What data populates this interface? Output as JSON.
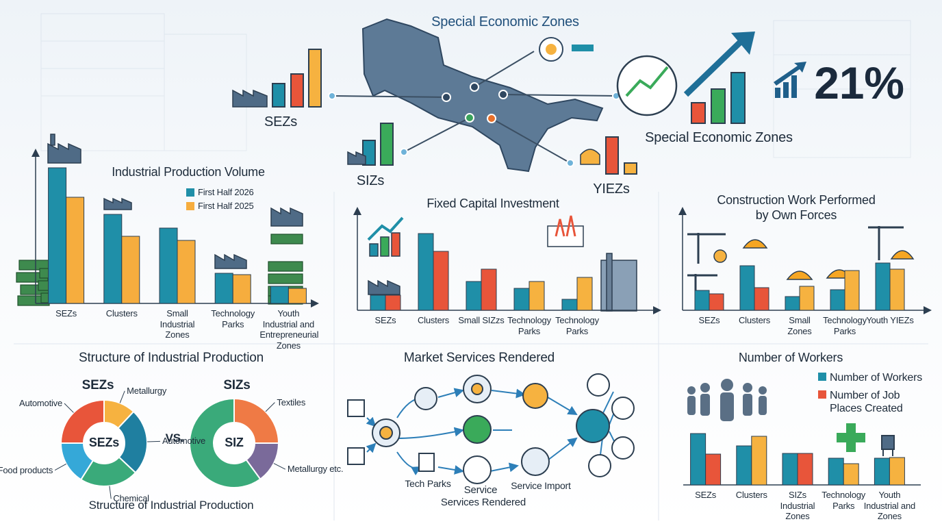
{
  "header": {
    "title": "Special Economic Zones",
    "map_labels": [
      "SEZs",
      "SIZs",
      "YIEZs"
    ],
    "highlight": "21%",
    "caption": "Special Economic Zones"
  },
  "structure": {
    "title": "Structure of Industrial Production",
    "vs": "VS.",
    "caption": "Structure of Industrial Production"
  },
  "services": {
    "title": "Market Services Rendered",
    "labels": [
      "Tech Parks",
      "Service",
      "Services Rendered",
      "Service Import"
    ]
  },
  "chart_data": [
    {
      "type": "bar",
      "title": "Industrial Production Volume",
      "categories": [
        "SEZs",
        "Clusters",
        "Small Industrial Zones",
        "Technology Parks",
        "Youth Industrial and Entrepreneurial Zones"
      ],
      "series": [
        {
          "name": "First Half 2026",
          "color": "#1f8fa8",
          "values": [
            198,
            130,
            110,
            44,
            25
          ]
        },
        {
          "name": "First Half 2025",
          "color": "#f6ad3e",
          "values": [
            155,
            98,
            92,
            42,
            22
          ]
        }
      ],
      "ylim": [
        0,
        210
      ],
      "legend": "upper right"
    },
    {
      "type": "bar",
      "title": "Fixed Capital Investment",
      "categories": [
        "SEZs",
        "Clusters",
        "Small SIZzs",
        "Technology Parks",
        "Technology Parks"
      ],
      "series": [
        {
          "color": "#1f8fa8",
          "values": [
            22,
            112,
            42,
            32,
            16
          ]
        },
        {
          "color": "#e8553a",
          "colors": [
            "#e8553a",
            "#e8553a",
            "#e8553a",
            "#f6b240",
            "#f6b240"
          ],
          "values": [
            22,
            86,
            60,
            42,
            48
          ]
        }
      ],
      "ylim": [
        0,
        135
      ]
    },
    {
      "type": "bar",
      "title": "Construction Work Performed by Own Forces",
      "categories": [
        "SEZs",
        "Clusters",
        "Small Zones",
        "Technology Parks",
        "Youth YIEZs"
      ],
      "series": [
        {
          "color": "#1f8fa8",
          "values": [
            29,
            65,
            20,
            30,
            69
          ]
        },
        {
          "color": "#e8553a",
          "colors": [
            "#e8553a",
            "#e8553a",
            "#f6b240",
            "#f6b240",
            "#f6b240"
          ],
          "values": [
            24,
            33,
            35,
            58,
            60
          ]
        }
      ],
      "ylim": [
        0,
        135
      ]
    },
    {
      "type": "bar",
      "title": "Number of Workers",
      "categories": [
        "SEZs",
        "Clusters",
        "SIZs Industrial Zones",
        "Technology Parks",
        "Youth Industrial and Zones"
      ],
      "series": [
        {
          "name": "Number of Workers",
          "color": "#1f8fa8",
          "values": [
            75,
            57,
            46,
            39,
            39
          ]
        },
        {
          "name": "Number of Job Places Created",
          "color": "#e8553a",
          "colors": [
            "#e8553a",
            "#f6b240",
            "#e8553a",
            "#f6b240",
            "#f6b240"
          ],
          "values": [
            45,
            71,
            46,
            31,
            40
          ]
        }
      ],
      "ylim": [
        0,
        108
      ],
      "legend": "upper right"
    },
    {
      "type": "pie",
      "title": "SEZs",
      "center_label": "SEZs",
      "categories": [
        "Metallurgy",
        "Automotive",
        "Chemical",
        "Food products",
        "Automotive"
      ],
      "values": [
        12,
        25,
        22,
        16,
        25
      ],
      "colors": [
        "#f6b240",
        "#1f7fa0",
        "#3aaa7a",
        "#35a8d8",
        "#e8553a"
      ]
    },
    {
      "type": "pie",
      "title": "SIZs",
      "center_label": "SIZ",
      "categories": [
        "Textiles",
        "Metallurgy etc.",
        null
      ],
      "values": [
        25,
        15,
        60
      ],
      "colors": [
        "#ef7a45",
        "#7a6a9a",
        "#3aaa7a"
      ]
    }
  ]
}
